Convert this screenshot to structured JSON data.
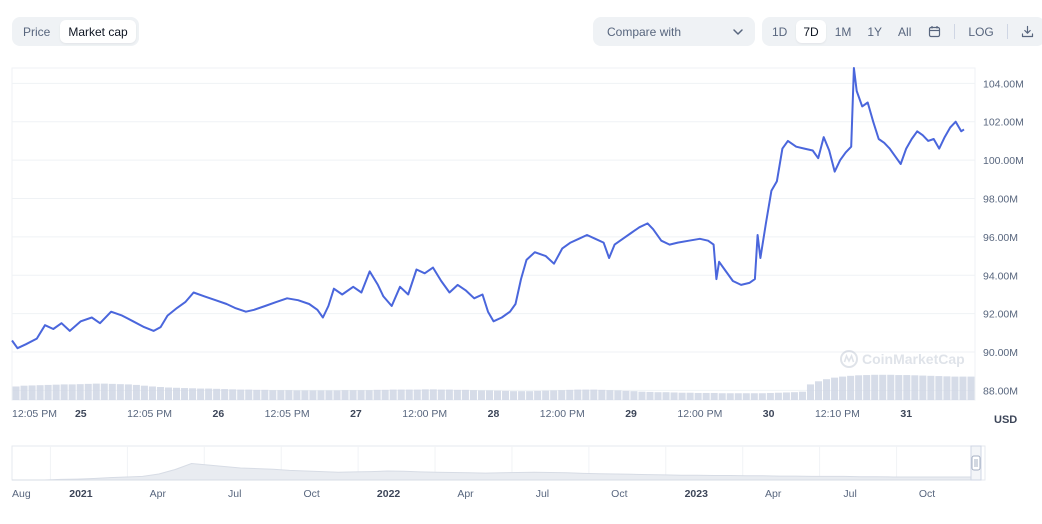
{
  "toolbar": {
    "tabs": [
      {
        "label": "Price",
        "active": false
      },
      {
        "label": "Market cap",
        "active": true
      }
    ],
    "compare_label": "Compare with",
    "ranges": [
      {
        "label": "1D",
        "active": false
      },
      {
        "label": "7D",
        "active": true
      },
      {
        "label": "1M",
        "active": false
      },
      {
        "label": "1Y",
        "active": false
      },
      {
        "label": "All",
        "active": false
      }
    ],
    "log_label": "LOG",
    "icons": {
      "calendar": "calendar-icon",
      "download": "download-icon",
      "compare": "chevron-down-icon"
    }
  },
  "watermark": "CoinMarketCap",
  "chart_data": {
    "type": "line",
    "currency": "USD",
    "ylim": [
      87.5,
      104.8
    ],
    "yticks": [
      88,
      90,
      92,
      94,
      96,
      98,
      100,
      102,
      104
    ],
    "ytick_labels": [
      "88.00M",
      "90.00M",
      "92.00M",
      "94.00M",
      "96.00M",
      "98.00M",
      "100.00M",
      "102.00M",
      "104.00M"
    ],
    "xlim": [
      0,
      7
    ],
    "xticks": [
      {
        "x": 0.0,
        "label": "12:05 PM",
        "bold": false
      },
      {
        "x": 0.5,
        "label": "25",
        "bold": true
      },
      {
        "x": 1.0,
        "label": "12:05 PM",
        "bold": false
      },
      {
        "x": 1.5,
        "label": "26",
        "bold": true
      },
      {
        "x": 2.0,
        "label": "12:05 PM",
        "bold": false
      },
      {
        "x": 2.5,
        "label": "27",
        "bold": true
      },
      {
        "x": 3.0,
        "label": "12:00 PM",
        "bold": false
      },
      {
        "x": 3.5,
        "label": "28",
        "bold": true
      },
      {
        "x": 4.0,
        "label": "12:00 PM",
        "bold": false
      },
      {
        "x": 4.5,
        "label": "29",
        "bold": true
      },
      {
        "x": 5.0,
        "label": "12:00 PM",
        "bold": false
      },
      {
        "x": 5.5,
        "label": "30",
        "bold": true
      },
      {
        "x": 6.0,
        "label": "12:10 PM",
        "bold": false
      },
      {
        "x": 6.5,
        "label": "31",
        "bold": true
      }
    ],
    "series": [
      {
        "color": "#4a66dc",
        "points": [
          [
            0.0,
            90.6
          ],
          [
            0.04,
            90.2
          ],
          [
            0.1,
            90.4
          ],
          [
            0.18,
            90.7
          ],
          [
            0.24,
            91.4
          ],
          [
            0.3,
            91.2
          ],
          [
            0.36,
            91.5
          ],
          [
            0.42,
            91.1
          ],
          [
            0.5,
            91.6
          ],
          [
            0.58,
            91.8
          ],
          [
            0.64,
            91.5
          ],
          [
            0.72,
            92.1
          ],
          [
            0.8,
            91.9
          ],
          [
            0.88,
            91.6
          ],
          [
            0.96,
            91.3
          ],
          [
            1.03,
            91.1
          ],
          [
            1.08,
            91.3
          ],
          [
            1.13,
            91.9
          ],
          [
            1.2,
            92.3
          ],
          [
            1.26,
            92.6
          ],
          [
            1.32,
            93.1
          ],
          [
            1.4,
            92.9
          ],
          [
            1.48,
            92.7
          ],
          [
            1.56,
            92.5
          ],
          [
            1.62,
            92.3
          ],
          [
            1.7,
            92.1
          ],
          [
            1.76,
            92.2
          ],
          [
            1.84,
            92.4
          ],
          [
            1.92,
            92.6
          ],
          [
            2.0,
            92.8
          ],
          [
            2.08,
            92.7
          ],
          [
            2.16,
            92.5
          ],
          [
            2.22,
            92.2
          ],
          [
            2.26,
            91.8
          ],
          [
            2.3,
            92.4
          ],
          [
            2.34,
            93.3
          ],
          [
            2.4,
            93.0
          ],
          [
            2.48,
            93.4
          ],
          [
            2.54,
            93.1
          ],
          [
            2.6,
            94.2
          ],
          [
            2.66,
            93.5
          ],
          [
            2.7,
            92.9
          ],
          [
            2.76,
            92.4
          ],
          [
            2.82,
            93.4
          ],
          [
            2.88,
            93.0
          ],
          [
            2.94,
            94.3
          ],
          [
            3.0,
            94.1
          ],
          [
            3.06,
            94.4
          ],
          [
            3.12,
            93.7
          ],
          [
            3.18,
            93.1
          ],
          [
            3.24,
            93.5
          ],
          [
            3.3,
            93.2
          ],
          [
            3.36,
            92.8
          ],
          [
            3.42,
            93.0
          ],
          [
            3.46,
            92.1
          ],
          [
            3.5,
            91.6
          ],
          [
            3.56,
            91.8
          ],
          [
            3.62,
            92.1
          ],
          [
            3.66,
            92.5
          ],
          [
            3.7,
            93.8
          ],
          [
            3.74,
            94.8
          ],
          [
            3.8,
            95.2
          ],
          [
            3.88,
            95.0
          ],
          [
            3.94,
            94.6
          ],
          [
            4.0,
            95.4
          ],
          [
            4.06,
            95.7
          ],
          [
            4.12,
            95.9
          ],
          [
            4.18,
            96.1
          ],
          [
            4.24,
            95.9
          ],
          [
            4.3,
            95.7
          ],
          [
            4.34,
            94.9
          ],
          [
            4.38,
            95.6
          ],
          [
            4.44,
            95.9
          ],
          [
            4.5,
            96.2
          ],
          [
            4.56,
            96.5
          ],
          [
            4.62,
            96.7
          ],
          [
            4.66,
            96.4
          ],
          [
            4.72,
            95.8
          ],
          [
            4.78,
            95.6
          ],
          [
            4.84,
            95.7
          ],
          [
            4.92,
            95.8
          ],
          [
            5.0,
            95.9
          ],
          [
            5.06,
            95.8
          ],
          [
            5.1,
            95.6
          ],
          [
            5.12,
            93.8
          ],
          [
            5.14,
            94.7
          ],
          [
            5.18,
            94.3
          ],
          [
            5.24,
            93.7
          ],
          [
            5.3,
            93.5
          ],
          [
            5.36,
            93.6
          ],
          [
            5.4,
            93.8
          ],
          [
            5.42,
            96.1
          ],
          [
            5.44,
            94.9
          ],
          [
            5.48,
            96.7
          ],
          [
            5.52,
            98.4
          ],
          [
            5.56,
            98.9
          ],
          [
            5.6,
            100.6
          ],
          [
            5.64,
            101.0
          ],
          [
            5.7,
            100.7
          ],
          [
            5.76,
            100.6
          ],
          [
            5.82,
            100.5
          ],
          [
            5.86,
            100.1
          ],
          [
            5.9,
            101.2
          ],
          [
            5.94,
            100.5
          ],
          [
            5.98,
            99.4
          ],
          [
            6.02,
            100.0
          ],
          [
            6.06,
            100.4
          ],
          [
            6.1,
            100.7
          ],
          [
            6.12,
            104.8
          ],
          [
            6.14,
            103.6
          ],
          [
            6.18,
            102.8
          ],
          [
            6.22,
            103.0
          ],
          [
            6.26,
            102.0
          ],
          [
            6.3,
            101.1
          ],
          [
            6.34,
            100.9
          ],
          [
            6.38,
            100.6
          ],
          [
            6.42,
            100.2
          ],
          [
            6.46,
            99.8
          ],
          [
            6.5,
            100.6
          ],
          [
            6.54,
            101.1
          ],
          [
            6.58,
            101.5
          ],
          [
            6.62,
            101.3
          ],
          [
            6.66,
            101.0
          ],
          [
            6.7,
            101.1
          ],
          [
            6.74,
            100.6
          ],
          [
            6.78,
            101.2
          ],
          [
            6.82,
            101.7
          ],
          [
            6.86,
            102.0
          ],
          [
            6.9,
            101.5
          ],
          [
            6.92,
            101.6
          ]
        ]
      }
    ],
    "volume_bars": [
      0.52,
      0.55,
      0.56,
      0.57,
      0.58,
      0.59,
      0.6,
      0.6,
      0.61,
      0.62,
      0.63,
      0.63,
      0.62,
      0.61,
      0.6,
      0.58,
      0.55,
      0.52,
      0.5,
      0.48,
      0.47,
      0.46,
      0.45,
      0.44,
      0.44,
      0.43,
      0.42,
      0.41,
      0.4,
      0.4,
      0.39,
      0.39,
      0.38,
      0.38,
      0.38,
      0.37,
      0.37,
      0.37,
      0.37,
      0.37,
      0.37,
      0.38,
      0.38,
      0.38,
      0.38,
      0.39,
      0.39,
      0.4,
      0.4,
      0.4,
      0.4,
      0.41,
      0.41,
      0.4,
      0.4,
      0.39,
      0.39,
      0.38,
      0.37,
      0.37,
      0.36,
      0.35,
      0.34,
      0.34,
      0.34,
      0.35,
      0.36,
      0.37,
      0.38,
      0.39,
      0.4,
      0.4,
      0.4,
      0.39,
      0.38,
      0.37,
      0.35,
      0.34,
      0.32,
      0.31,
      0.3,
      0.3,
      0.29,
      0.28,
      0.28,
      0.27,
      0.27,
      0.27,
      0.26,
      0.26,
      0.26,
      0.26,
      0.26,
      0.26,
      0.27,
      0.28,
      0.29,
      0.3,
      0.32,
      0.6,
      0.72,
      0.8,
      0.86,
      0.9,
      0.93,
      0.95,
      0.96,
      0.97,
      0.97,
      0.97,
      0.96,
      0.96,
      0.95,
      0.94,
      0.93,
      0.92,
      0.91,
      0.9,
      0.9,
      0.9
    ],
    "navigator": {
      "xticks": [
        {
          "label": "Aug",
          "bold": false
        },
        {
          "label": "2021",
          "bold": true
        },
        {
          "label": "Apr",
          "bold": false
        },
        {
          "label": "Jul",
          "bold": false
        },
        {
          "label": "Oct",
          "bold": false
        },
        {
          "label": "2022",
          "bold": true
        },
        {
          "label": "Apr",
          "bold": false
        },
        {
          "label": "Jul",
          "bold": false
        },
        {
          "label": "Oct",
          "bold": false
        },
        {
          "label": "2023",
          "bold": true
        },
        {
          "label": "Apr",
          "bold": false
        },
        {
          "label": "Jul",
          "bold": false
        },
        {
          "label": "Oct",
          "bold": false
        }
      ],
      "area": [
        0.0,
        0.0,
        0.0,
        0.02,
        0.03,
        0.05,
        0.08,
        0.1,
        0.12,
        0.2,
        0.35,
        0.55,
        0.5,
        0.45,
        0.4,
        0.38,
        0.36,
        0.32,
        0.3,
        0.28,
        0.26,
        0.27,
        0.28,
        0.3,
        0.29,
        0.27,
        0.26,
        0.25,
        0.24,
        0.23,
        0.24,
        0.25,
        0.26,
        0.25,
        0.24,
        0.22,
        0.21,
        0.2,
        0.19,
        0.18,
        0.17,
        0.16,
        0.16,
        0.15,
        0.15,
        0.14,
        0.14,
        0.13,
        0.13,
        0.12,
        0.12,
        0.12,
        0.11,
        0.11,
        0.1,
        0.1,
        0.1,
        0.1,
        0.1,
        0.1
      ]
    }
  }
}
